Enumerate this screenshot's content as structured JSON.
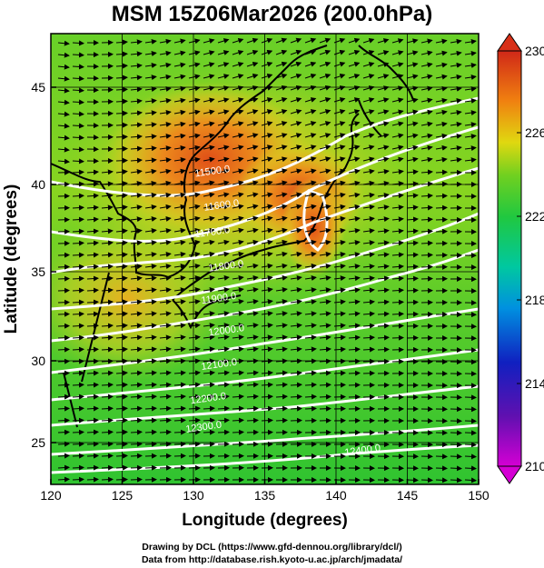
{
  "title": "MSM 15Z06Mar2026 (200.0hPa)",
  "axes": {
    "xlabel": "Longitude (degrees)",
    "ylabel": "Latitude  (degrees)",
    "xticks": [
      "120",
      "125",
      "130",
      "135",
      "140",
      "145",
      "150"
    ],
    "yticks": [
      "25",
      "30",
      "35",
      "40",
      "45"
    ],
    "xrange": [
      120,
      150
    ],
    "yrange": [
      22.4,
      47.6
    ]
  },
  "colorbar": {
    "labels": [
      "230",
      "226",
      "222",
      "218",
      "214",
      "210"
    ],
    "range": [
      210,
      230
    ],
    "colors": [
      "#d400d4",
      "#1010b0",
      "#00a0e8",
      "#14c850",
      "#60d020",
      "#e0d800",
      "#f07010",
      "#d83018"
    ]
  },
  "contours": [
    {
      "label": "11500.0",
      "lat": 39.6
    },
    {
      "label": "11600.0",
      "lat": 37.7
    },
    {
      "label": "11700.0",
      "lat": 36.2
    },
    {
      "label": "11800.0",
      "lat": 34.3
    },
    {
      "label": "11900.0",
      "lat": 32.5
    },
    {
      "label": "12000.0",
      "lat": 30.7
    },
    {
      "label": "12100.0",
      "lat": 28.8
    },
    {
      "label": "12200.0",
      "lat": 26.9
    },
    {
      "label": "12300.0",
      "lat": 25.3
    },
    {
      "label": "12400.0",
      "lat": 24.0
    }
  ],
  "credits": {
    "line1": "Drawing by DCL (https://www.gfd-dennou.org/library/dcl/)",
    "line2": "Data from http://database.rish.kyoto-u.ac.jp/arch/jmadata/"
  }
}
